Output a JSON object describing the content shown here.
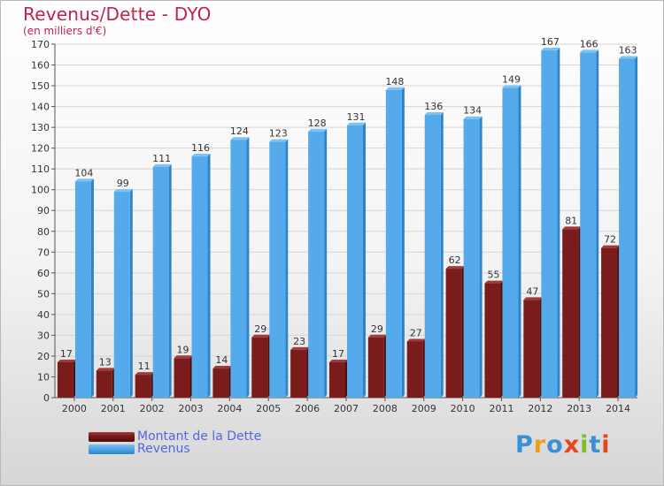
{
  "header": {
    "title": "Revenus/Dette - DYO",
    "subtitle": "(en milliers d'€)"
  },
  "colors": {
    "dette_front": "#7a1c1c",
    "dette_top": "#a33a3a",
    "dette_side": "#4c0e0e",
    "revenus_front": "#55aaeb",
    "revenus_top": "#7cc2f4",
    "revenus_side": "#2f83c9",
    "title": "#c0234a",
    "legend_text": "#5566dd"
  },
  "legend": {
    "dette_label": "Montant de la Dette",
    "revenus_label": "Revenus"
  },
  "logo": {
    "text": "Proxiti",
    "letter_colors": [
      "#3b8fd6",
      "#f29a1c",
      "#3b8fd6",
      "#e8451d",
      "#7cbf2a",
      "#3b8fd6",
      "#e8451d"
    ]
  },
  "chart_data": {
    "type": "bar",
    "categories": [
      "2000",
      "2001",
      "2002",
      "2003",
      "2004",
      "2005",
      "2006",
      "2007",
      "2008",
      "2009",
      "2010",
      "2011",
      "2012",
      "2013",
      "2014"
    ],
    "series": [
      {
        "name": "Montant de la Dette",
        "values": [
          17,
          13,
          11,
          19,
          14,
          29,
          23,
          17,
          29,
          27,
          62,
          55,
          47,
          81,
          72
        ]
      },
      {
        "name": "Revenus",
        "values": [
          104,
          99,
          111,
          116,
          124,
          123,
          128,
          131,
          148,
          136,
          134,
          149,
          167,
          166,
          163
        ]
      }
    ],
    "ylim": [
      0,
      170
    ],
    "yticks": [
      0,
      10,
      20,
      30,
      40,
      50,
      60,
      70,
      80,
      90,
      100,
      110,
      120,
      130,
      140,
      150,
      160,
      170
    ],
    "grid": true,
    "legend_position": "bottom-left"
  }
}
